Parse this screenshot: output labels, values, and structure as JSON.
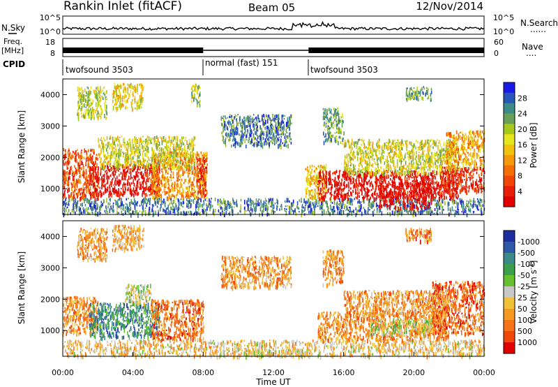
{
  "header": {
    "title": "Rankin Inlet (fitACF)",
    "beam": "Beam 05",
    "date": "12/Nov/2014"
  },
  "noise_panel": {
    "left_label": "N.Sky",
    "right_label": "N.Search",
    "right_dots": "......",
    "left_ticks": [
      "10^5",
      "10^0"
    ],
    "right_ticks": [
      "10^5",
      "10^0"
    ]
  },
  "freq_panel": {
    "left_label_1": "Freq.",
    "left_label_2": "[MHz]",
    "left_ticks": [
      "18",
      "8"
    ],
    "right_label": "Nave",
    "right_dots": "....",
    "right_ticks": [
      "60",
      "0"
    ]
  },
  "cpid_panel": {
    "label": "CPID",
    "segments": [
      {
        "start_hour": 0,
        "end_hour": 8,
        "label": "twofsound 3503"
      },
      {
        "start_hour": 8,
        "end_hour": 14,
        "label": "normal (fast) 151"
      },
      {
        "start_hour": 14,
        "end_hour": 24,
        "label": "twofsound 3503"
      }
    ]
  },
  "x_axis": {
    "label": "Time UT",
    "ticks": [
      "00:00",
      "04:00",
      "08:00",
      "12:00",
      "16:00",
      "20:00",
      "00:00"
    ]
  },
  "chart_data": [
    {
      "type": "heatmap",
      "quantity": "power",
      "ylabel": "Slant Range [km]",
      "yticks": [
        1000,
        2000,
        3000,
        4000
      ],
      "ylim": [
        180,
        4500
      ],
      "xlim_hours": [
        0,
        24
      ],
      "colorbar": {
        "label": "Power [dB]",
        "ticks": [
          "4",
          "8",
          "12",
          "16",
          "20",
          "24",
          "28"
        ],
        "colors": [
          "#1a1ae6",
          "#2a56b8",
          "#3c8a8a",
          "#6aa055",
          "#a8c81e",
          "#e6e61e",
          "#f0c20e",
          "#f59a0a",
          "#f56e08",
          "#f04606",
          "#e81e06",
          "#e00000"
        ]
      },
      "regions": [
        {
          "t": [
            0.0,
            2.0
          ],
          "r": [
            700,
            2300
          ],
          "level": 0.78
        },
        {
          "t": [
            1.5,
            5.5
          ],
          "r": [
            800,
            1800
          ],
          "level": 0.95
        },
        {
          "t": [
            5.0,
            8.2
          ],
          "r": [
            700,
            2200
          ],
          "level": 0.65
        },
        {
          "t": [
            7.6,
            8.2
          ],
          "r": [
            800,
            2000
          ],
          "level": 0.85
        },
        {
          "t": [
            2.0,
            7.5
          ],
          "r": [
            1700,
            2700
          ],
          "level": 0.45
        },
        {
          "t": [
            0.0,
            24.0
          ],
          "r": [
            200,
            700
          ],
          "level": 0.2
        },
        {
          "t": [
            13.8,
            15.0
          ],
          "r": [
            700,
            1800
          ],
          "level": 0.55
        },
        {
          "t": [
            14.5,
            22.5
          ],
          "r": [
            700,
            1600
          ],
          "level": 0.96
        },
        {
          "t": [
            18.0,
            21.0
          ],
          "r": [
            400,
            1200
          ],
          "level": 0.97
        },
        {
          "t": [
            16.0,
            22.5
          ],
          "r": [
            1500,
            2600
          ],
          "level": 0.45
        },
        {
          "t": [
            21.5,
            24.0
          ],
          "r": [
            900,
            1700
          ],
          "level": 0.85
        },
        {
          "t": [
            21.8,
            24.0
          ],
          "r": [
            1700,
            2900
          ],
          "level": 0.6
        },
        {
          "t": [
            0.8,
            2.5
          ],
          "r": [
            3300,
            4300
          ],
          "level": 0.4
        },
        {
          "t": [
            2.8,
            4.6
          ],
          "r": [
            3600,
            4400
          ],
          "level": 0.5
        },
        {
          "t": [
            7.3,
            7.8
          ],
          "r": [
            3700,
            4400
          ],
          "level": 0.35
        },
        {
          "t": [
            14.8,
            16.0
          ],
          "r": [
            2500,
            3600
          ],
          "level": 0.3
        },
        {
          "t": [
            19.5,
            21.0
          ],
          "r": [
            3900,
            4300
          ],
          "level": 0.3
        },
        {
          "t": [
            9.0,
            13.0
          ],
          "r": [
            2400,
            3400
          ],
          "level": 0.2
        }
      ]
    },
    {
      "type": "heatmap",
      "quantity": "velocity",
      "ylabel": "Slant Range [km]",
      "yticks": [
        1000,
        2000,
        3000,
        4000
      ],
      "ylim": [
        180,
        4500
      ],
      "xlim_hours": [
        0,
        24
      ],
      "colorbar": {
        "label": "Velocity [m s",
        "ticks": [
          "1000",
          "500",
          "100",
          "50",
          "25",
          "-25",
          "-50",
          "-100",
          "-500",
          "-1000"
        ],
        "colors": [
          "#1e2ea0",
          "#2e58a8",
          "#3c8a8a",
          "#3aa04e",
          "#66c030",
          "#c8c8c8",
          "#f0c23c",
          "#f59a20",
          "#f57418",
          "#f04808",
          "#e00000"
        ]
      },
      "regions": [
        {
          "t": [
            0.0,
            2.0
          ],
          "r": [
            900,
            2100
          ],
          "level": 0.72
        },
        {
          "t": [
            1.5,
            5.5
          ],
          "r": [
            800,
            1900
          ],
          "level": 0.25
        },
        {
          "t": [
            5.0,
            8.0
          ],
          "r": [
            700,
            2000
          ],
          "level": 0.78
        },
        {
          "t": [
            3.5,
            5.0
          ],
          "r": [
            1900,
            2500
          ],
          "level": 0.5
        },
        {
          "t": [
            0.0,
            24.0
          ],
          "r": [
            200,
            700
          ],
          "level": 0.6
        },
        {
          "t": [
            8.5,
            14.0
          ],
          "r": [
            190,
            400
          ],
          "level": 0.55
        },
        {
          "t": [
            14.5,
            22.0
          ],
          "r": [
            700,
            1600
          ],
          "level": 0.72
        },
        {
          "t": [
            17.5,
            21.0
          ],
          "r": [
            900,
            1400
          ],
          "level": 0.5
        },
        {
          "t": [
            21.0,
            24.0
          ],
          "r": [
            900,
            2600
          ],
          "level": 0.8
        },
        {
          "t": [
            16.0,
            22.0
          ],
          "r": [
            1500,
            2300
          ],
          "level": 0.7
        },
        {
          "t": [
            0.8,
            2.5
          ],
          "r": [
            3300,
            4300
          ],
          "level": 0.7
        },
        {
          "t": [
            2.8,
            4.6
          ],
          "r": [
            3600,
            4400
          ],
          "level": 0.65
        },
        {
          "t": [
            14.8,
            16.0
          ],
          "r": [
            2500,
            3600
          ],
          "level": 0.7
        },
        {
          "t": [
            19.5,
            21.0
          ],
          "r": [
            3900,
            4300
          ],
          "level": 0.75
        },
        {
          "t": [
            9.0,
            13.0
          ],
          "r": [
            2400,
            3400
          ],
          "level": 0.7
        }
      ]
    }
  ]
}
